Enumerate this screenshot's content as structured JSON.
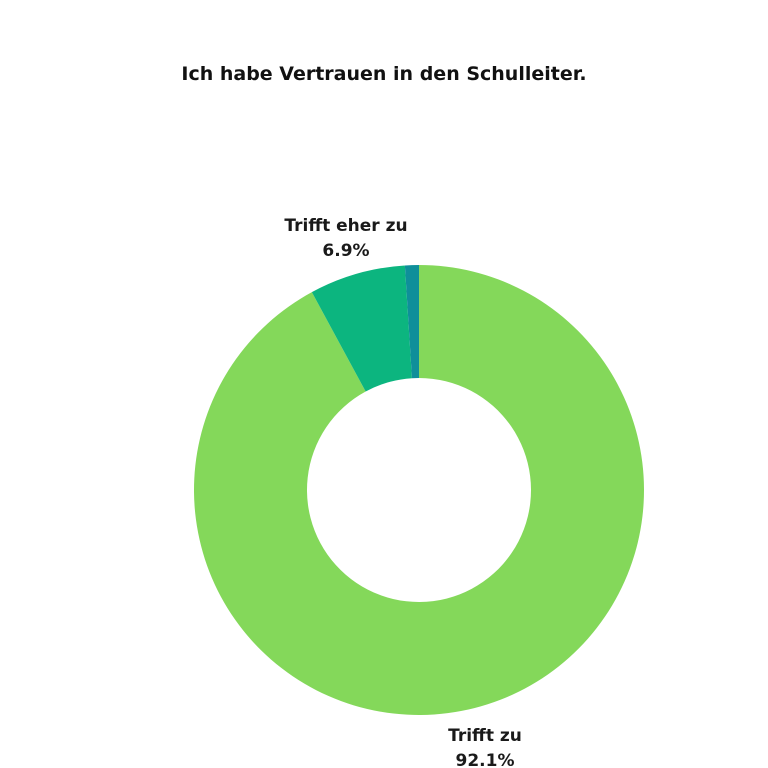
{
  "chart_data": {
    "type": "pie",
    "title": "Ich habe Vertrauen in den Schulleiter.",
    "donut": true,
    "slices": [
      {
        "label": "Trifft zu",
        "value": 92.1,
        "value_label": "92.1%",
        "color": "#84d85a"
      },
      {
        "label": "Trifft eher zu",
        "value": 6.9,
        "value_label": "6.9%",
        "color": "#0cb57f"
      },
      {
        "label": "",
        "value": 1.0,
        "value_label": "",
        "color": "#0f8f9a"
      }
    ]
  }
}
